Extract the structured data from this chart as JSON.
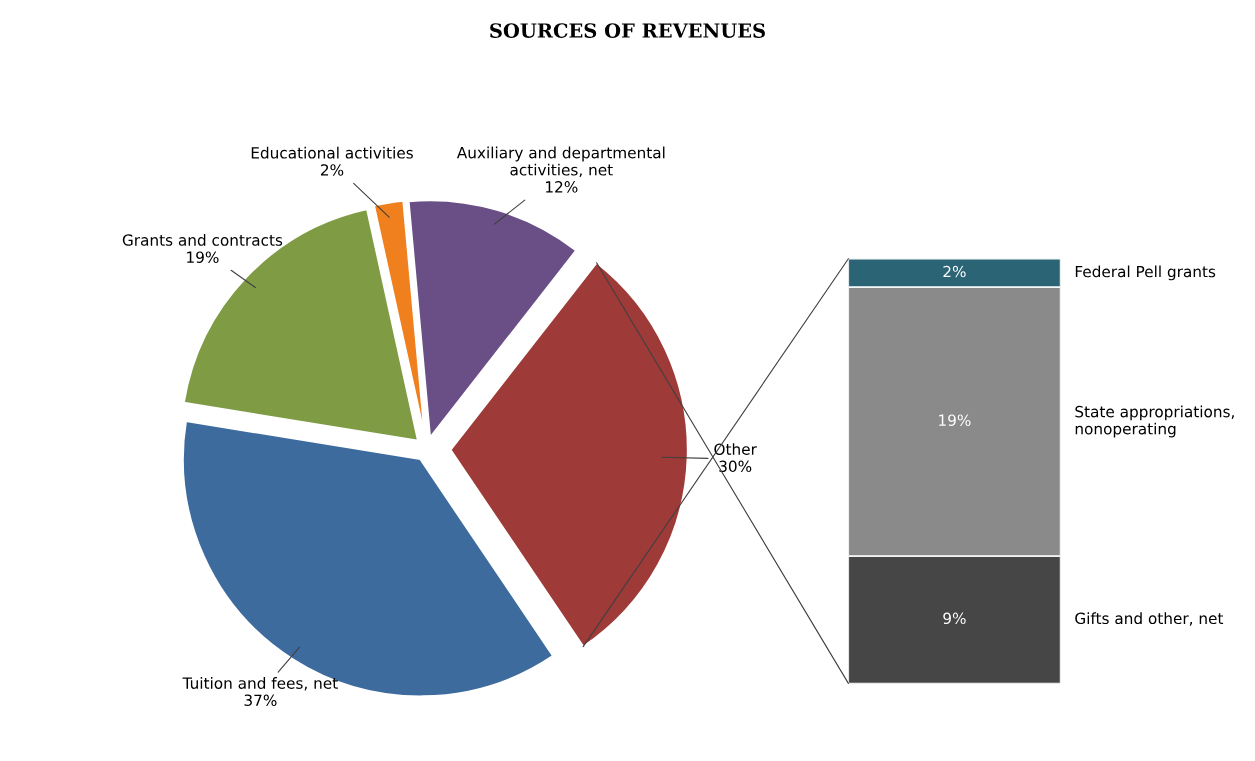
{
  "chart_data": [
    {
      "type": "pie",
      "title": "SOURCES OF REVENUES",
      "categories": [
        "Other",
        "Tuition and fees, net",
        "Grants and contracts",
        "Educational activities",
        "Auxiliary and departmental activities, net"
      ],
      "values": [
        30,
        37,
        19,
        2,
        12
      ],
      "value_labels": [
        "30%",
        "37%",
        "19%",
        "2%",
        "12%"
      ],
      "colors": [
        "#9e3a38",
        "#3e6b9e",
        "#7f9c45",
        "#f07f1d",
        "#6a4f86"
      ],
      "legend": false
    },
    {
      "type": "bar",
      "stacked": true,
      "categories": [
        null
      ],
      "series": [
        {
          "name": "Gifts and other, net",
          "color": "#464646",
          "values": [
            9
          ],
          "value_labels": [
            "9%"
          ]
        },
        {
          "name": "State appropriations, nonoperating",
          "color": "#8a8a8a",
          "values": [
            19
          ],
          "value_labels": [
            "19%"
          ]
        },
        {
          "name": "Federal Pell grants",
          "color": "#2a6475",
          "values": [
            2
          ],
          "value_labels": [
            "2%"
          ]
        }
      ],
      "tick_labels": false,
      "legend": false
    }
  ]
}
